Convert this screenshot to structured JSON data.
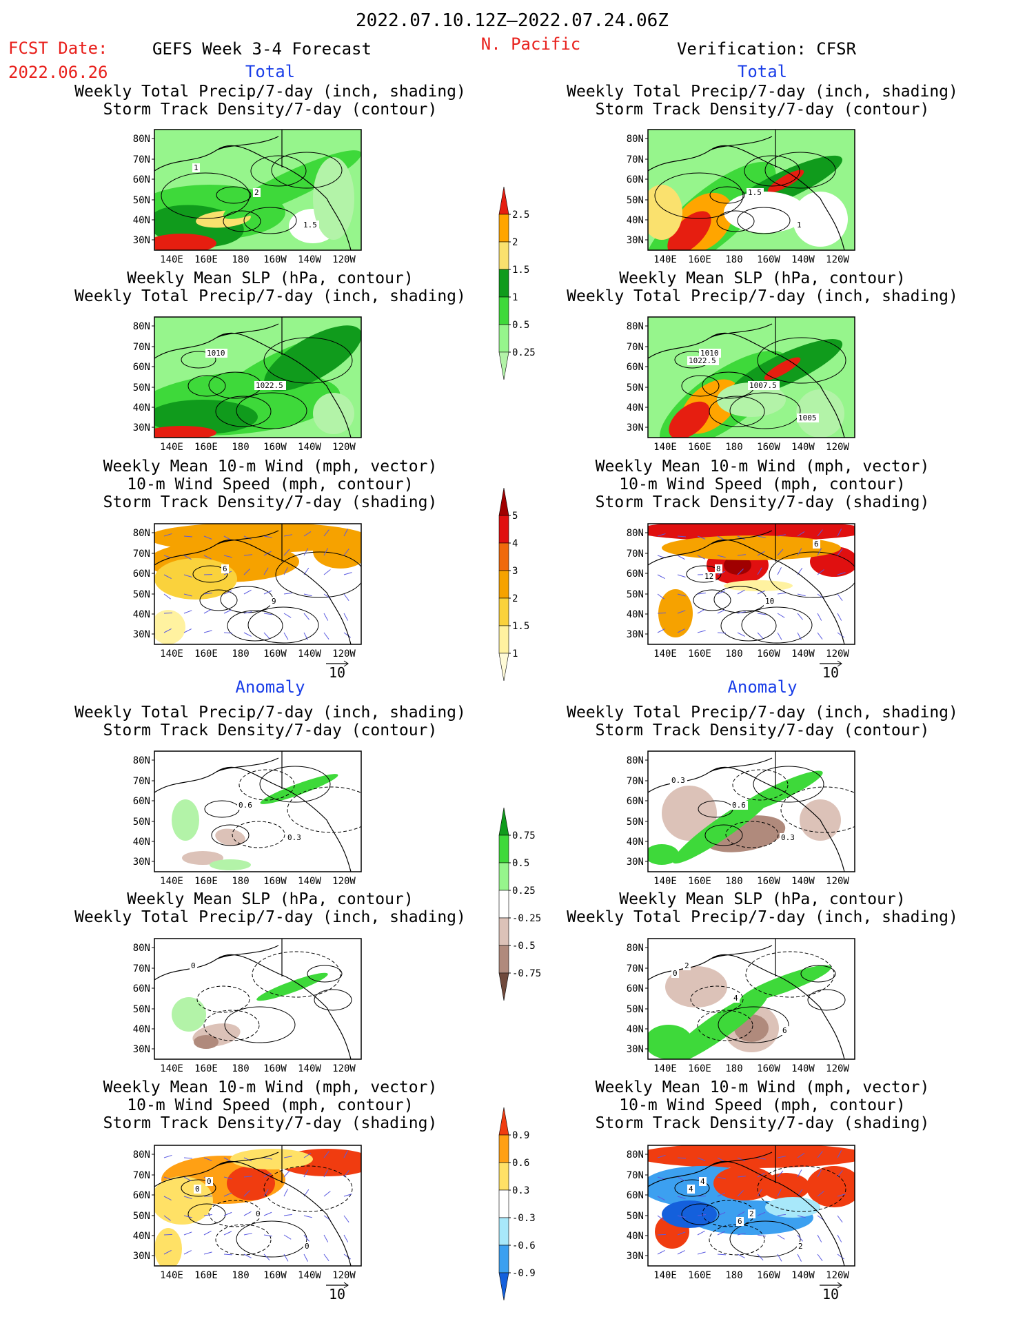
{
  "header": {
    "date_range": "2022.07.10.12Z–2022.07.24.06Z",
    "fcst_label": "FCST Date:",
    "fcst_date": "2022.06.26",
    "forecast_title": "GEFS Week 3-4 Forecast",
    "region": "N. Pacific",
    "verification": "Verification: CFSR"
  },
  "sections": {
    "total": "Total",
    "anomaly": "Anomaly"
  },
  "colors": {
    "title_red": "#e8201c",
    "section_blue": "#1a3ee8"
  },
  "axes": {
    "lat_ticks": [
      "80N",
      "70N",
      "60N",
      "50N",
      "40N",
      "30N"
    ],
    "lon_ticks": [
      "140E",
      "160E",
      "180",
      "160W",
      "140W",
      "120W"
    ],
    "vector_ref": "10"
  },
  "chart_data": [
    {
      "type": "heatmap",
      "id": "fc-total-precip",
      "column": "forecast",
      "section": "total",
      "title_lines": [
        "Weekly Total Precip/7-day (inch, shading)",
        "Storm Track Density/7-day (contour)"
      ],
      "contour_labels": [
        "2",
        "1.5",
        "1"
      ]
    },
    {
      "type": "heatmap",
      "id": "fc-total-slp",
      "column": "forecast",
      "section": "total",
      "title_lines": [
        "Weekly Mean SLP (hPa, contour)",
        "Weekly Total Precip/7-day (inch, shading)"
      ],
      "contour_labels": [
        "1010",
        "1022.5"
      ]
    },
    {
      "type": "heatmap",
      "id": "fc-total-wind",
      "column": "forecast",
      "section": "total",
      "title_lines": [
        "Weekly Mean 10-m Wind (mph, vector)",
        "10-m Wind Speed (mph, contour)",
        "Storm Track Density/7-day (shading)"
      ],
      "contour_labels": [
        "6",
        "9"
      ]
    },
    {
      "type": "heatmap",
      "id": "fc-anom-precip",
      "column": "forecast",
      "section": "anomaly",
      "title_lines": [
        "Weekly Total Precip/7-day (inch, shading)",
        "Storm Track Density/7-day (contour)"
      ],
      "contour_labels": [
        "0.6",
        "0.3"
      ]
    },
    {
      "type": "heatmap",
      "id": "fc-anom-slp",
      "column": "forecast",
      "section": "anomaly",
      "title_lines": [
        "Weekly Mean SLP (hPa, contour)",
        "Weekly Total Precip/7-day (inch, shading)"
      ],
      "contour_labels": [
        "0"
      ]
    },
    {
      "type": "heatmap",
      "id": "fc-anom-wind",
      "column": "forecast",
      "section": "anomaly",
      "title_lines": [
        "Weekly Mean 10-m Wind (mph, vector)",
        "10-m Wind Speed (mph, contour)",
        "Storm Track Density/7-day (shading)"
      ],
      "contour_labels": [
        "0",
        "0",
        "0",
        "0"
      ]
    },
    {
      "type": "heatmap",
      "id": "vf-total-precip",
      "column": "verification",
      "section": "total",
      "title_lines": [
        "Weekly Total Precip/7-day (inch, shading)",
        "Storm Track Density/7-day (contour)"
      ],
      "contour_labels": [
        "1.5",
        "1"
      ]
    },
    {
      "type": "heatmap",
      "id": "vf-total-slp",
      "column": "verification",
      "section": "total",
      "title_lines": [
        "Weekly Mean SLP (hPa, contour)",
        "Weekly Total Precip/7-day (inch, shading)"
      ],
      "contour_labels": [
        "1010",
        "1007.5",
        "1005",
        "1022.5"
      ]
    },
    {
      "type": "heatmap",
      "id": "vf-total-wind",
      "column": "verification",
      "section": "total",
      "title_lines": [
        "Weekly Mean 10-m Wind (mph, vector)",
        "10-m Wind Speed (mph, contour)",
        "Storm Track Density/7-day (shading)"
      ],
      "contour_labels": [
        "8",
        "10",
        "6",
        "12"
      ]
    },
    {
      "type": "heatmap",
      "id": "vf-anom-precip",
      "column": "verification",
      "section": "anomaly",
      "title_lines": [
        "Weekly Total Precip/7-day (inch, shading)",
        "Storm Track Density/7-day (contour)"
      ],
      "contour_labels": [
        "0.6",
        "0.3",
        "0.3"
      ]
    },
    {
      "type": "heatmap",
      "id": "vf-anom-slp",
      "column": "verification",
      "section": "anomaly",
      "title_lines": [
        "Weekly Mean SLP (hPa, contour)",
        "Weekly Total Precip/7-day (inch, shading)"
      ],
      "contour_labels": [
        "2",
        "4",
        "6",
        "0"
      ]
    },
    {
      "type": "heatmap",
      "id": "vf-anom-wind",
      "column": "verification",
      "section": "anomaly",
      "title_lines": [
        "Weekly Mean 10-m Wind (mph, vector)",
        "10-m Wind Speed (mph, contour)",
        "Storm Track Density/7-day (shading)"
      ],
      "contour_labels": [
        "4",
        "2",
        "2",
        "4",
        "6"
      ]
    }
  ],
  "colorbars": [
    {
      "id": "cb-precip-total",
      "labels": [
        "2.5",
        "2",
        "1.5",
        "1",
        "0.5",
        "0.25"
      ],
      "colors": [
        "#e61e10",
        "#ffa500",
        "#fae16e",
        "#109b1c",
        "#3ed93a",
        "#96f58c",
        "#b3f3a8"
      ]
    },
    {
      "id": "cb-storm-total",
      "labels": [
        "5",
        "4",
        "3",
        "2",
        "1.5",
        "1"
      ],
      "colors": [
        "#a00000",
        "#e01010",
        "#f06a0c",
        "#f6a200",
        "#fad23c",
        "#fff2a0",
        "#fffbd8"
      ]
    },
    {
      "id": "cb-precip-anom",
      "labels": [
        "0.75",
        "0.5",
        "0.25",
        "-0.25",
        "-0.5",
        "-0.75"
      ],
      "colors": [
        "#109b1c",
        "#3ed93a",
        "#96f58c",
        "#ffffff",
        "#dcc2b8",
        "#b08a7c",
        "#704a3c"
      ]
    },
    {
      "id": "cb-storm-anom",
      "labels": [
        "0.9",
        "0.6",
        "0.3",
        "-0.3",
        "-0.6",
        "-0.9"
      ],
      "colors": [
        "#f03c10",
        "#ffa014",
        "#ffe166",
        "#ffffff",
        "#a8e8fa",
        "#3ca0f0",
        "#1460dc"
      ]
    }
  ]
}
